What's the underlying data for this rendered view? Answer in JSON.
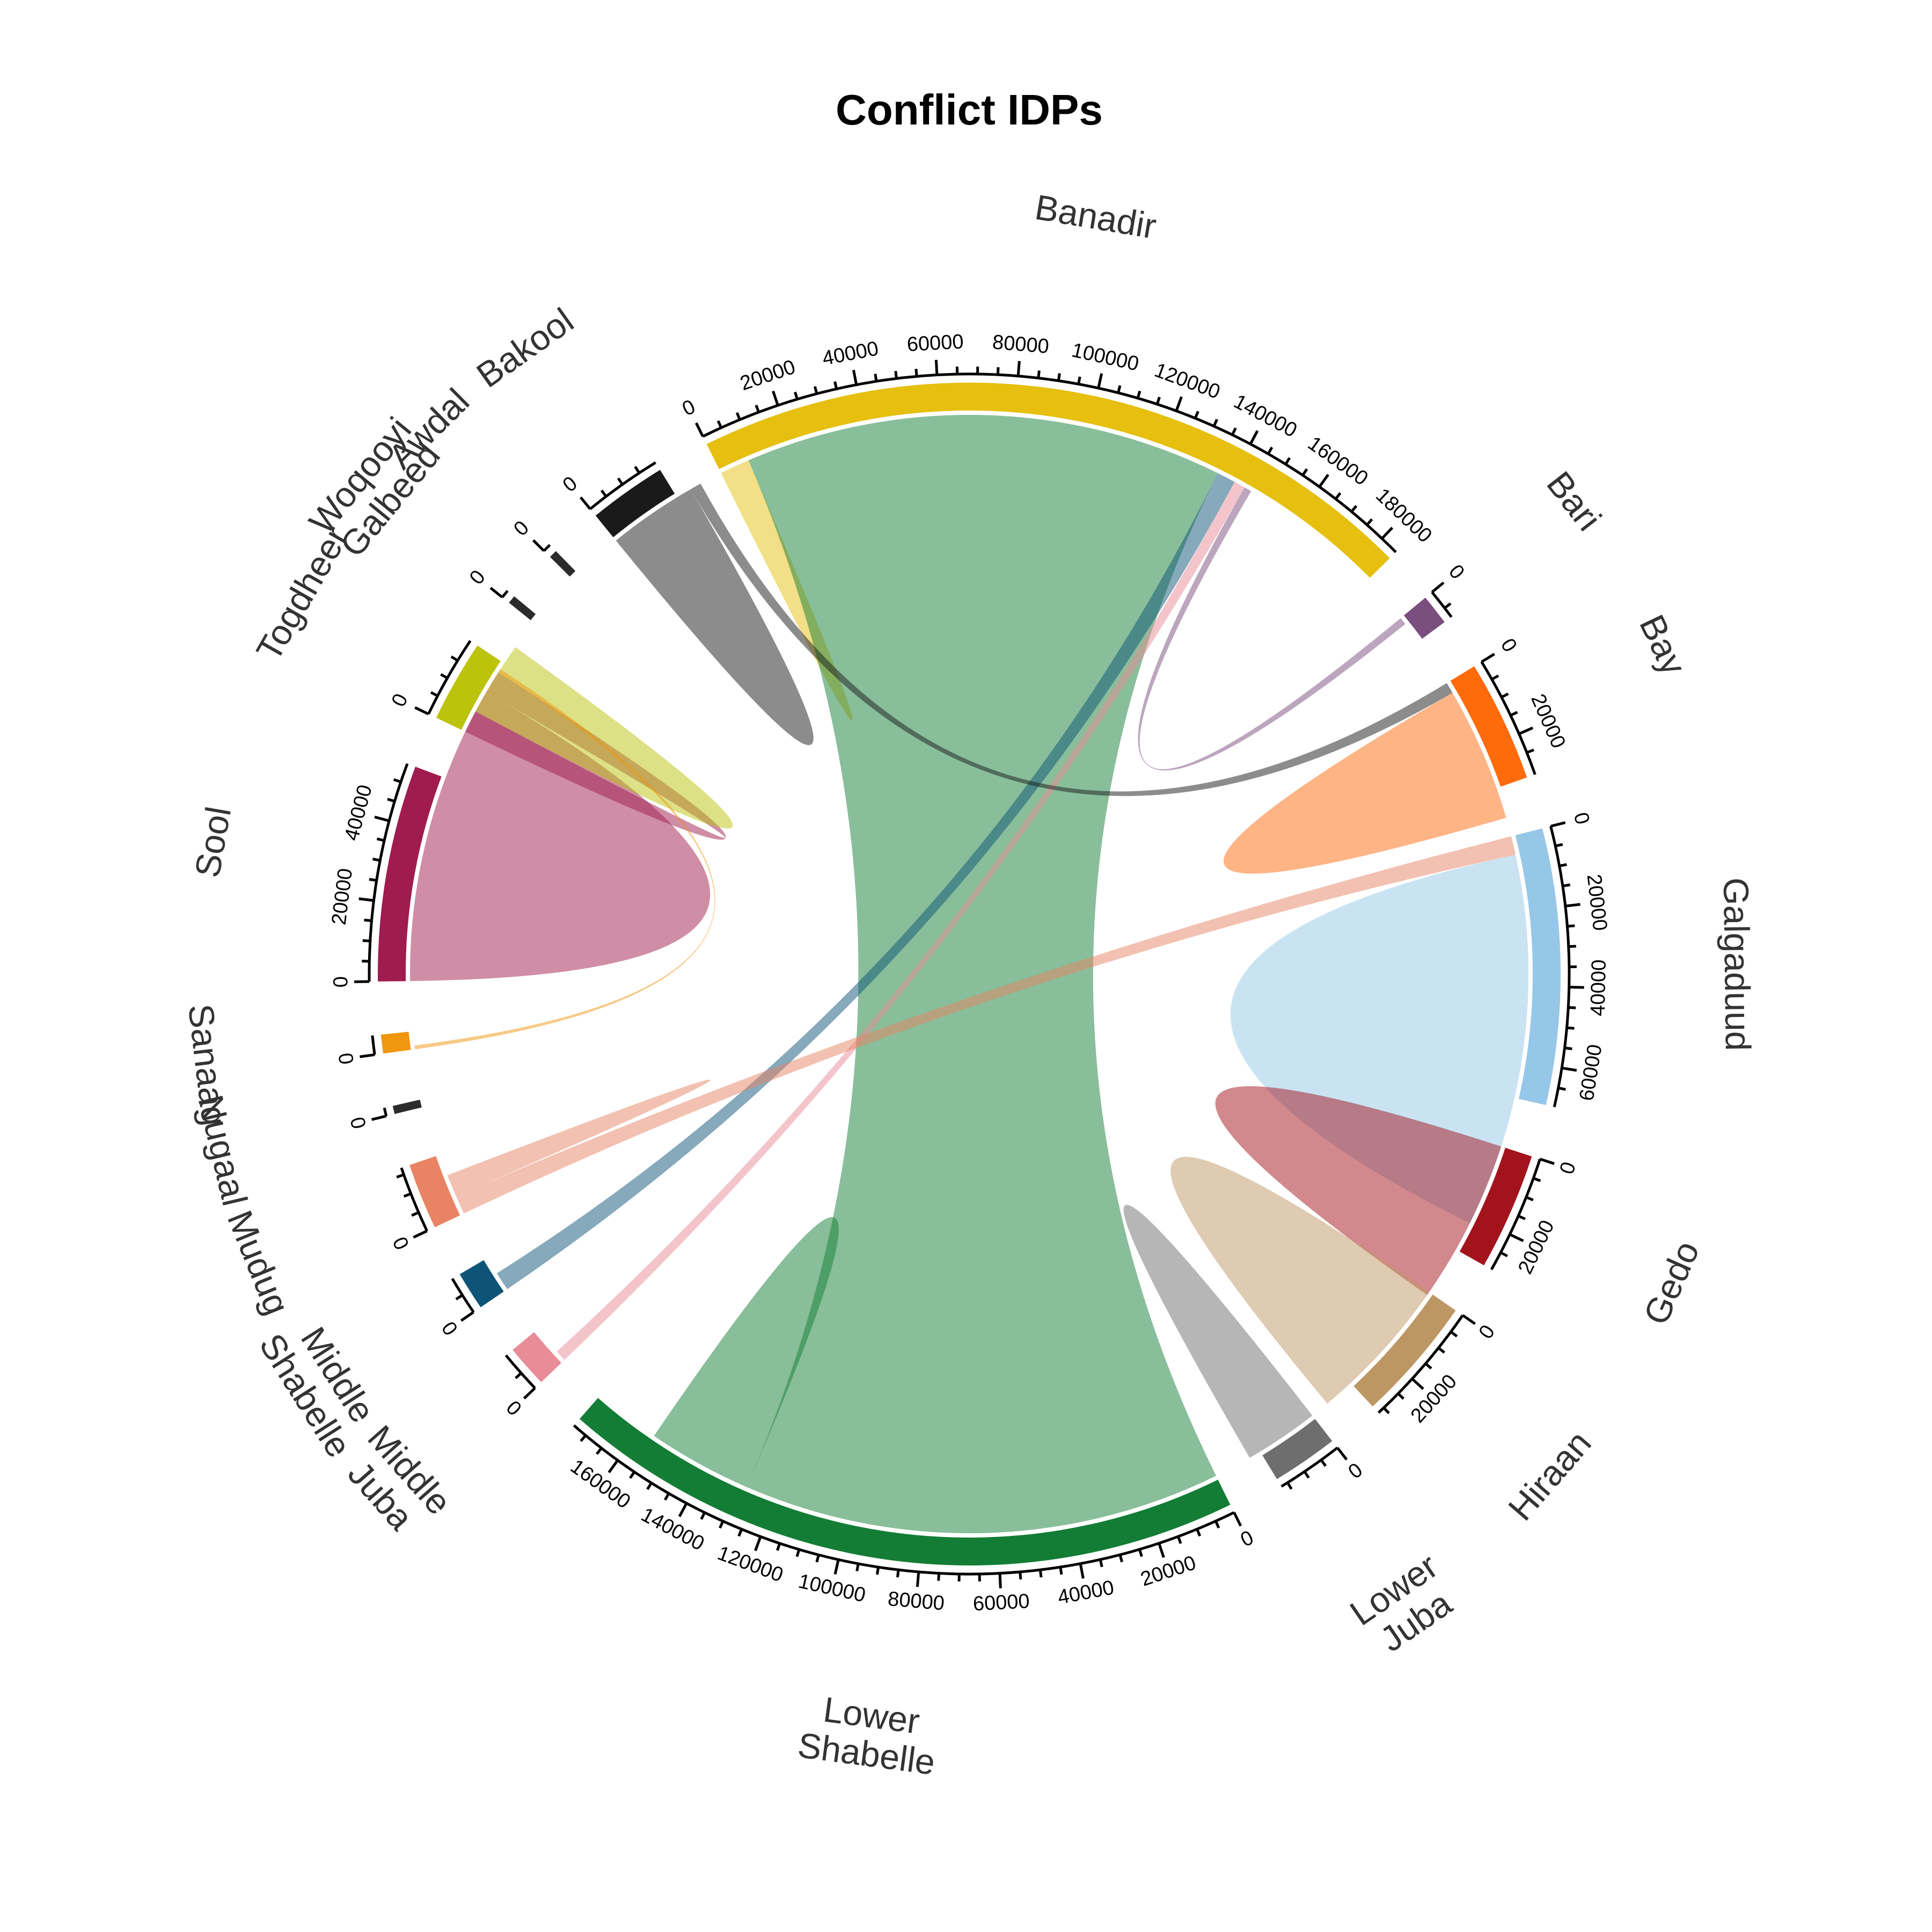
{
  "chart_data": {
    "type": "chord",
    "title": "Conflict IDPs",
    "sectors": [
      {
        "name": "Banadir",
        "label_lines": [
          "Banadir"
        ],
        "total": 183000,
        "color": "#E6BF0F",
        "tick_step": 20000
      },
      {
        "name": "Bari",
        "label_lines": [
          "Bari"
        ],
        "total": 6000,
        "color": "#7A4E7E",
        "tick_step": 20000
      },
      {
        "name": "Bay",
        "label_lines": [
          "Bay"
        ],
        "total": 29000,
        "color": "#FF6A0B",
        "tick_step": 20000
      },
      {
        "name": "Galgaduud",
        "label_lines": [
          "Galgaduud"
        ],
        "total": 68000,
        "color": "#96C7E8",
        "tick_step": 20000
      },
      {
        "name": "Gedo",
        "label_lines": [
          "Gedo"
        ],
        "total": 28000,
        "color": "#A3131C",
        "tick_step": 20000
      },
      {
        "name": "Hiraan",
        "label_lines": [
          "Hiraan"
        ],
        "total": 30000,
        "color": "#BD9763",
        "tick_step": 20000
      },
      {
        "name": "Lower Juba",
        "label_lines": [
          "Lower",
          "Juba"
        ],
        "total": 15000,
        "color": "#6E6E6E",
        "tick_step": 20000
      },
      {
        "name": "Lower Shabelle",
        "label_lines": [
          "Lower",
          "Shabelle"
        ],
        "total": 172000,
        "color": "#137D35",
        "tick_step": 20000
      },
      {
        "name": "Middle Juba",
        "label_lines": [
          "Middle",
          "Juba"
        ],
        "total": 9000,
        "color": "#E88C97",
        "tick_step": 20000
      },
      {
        "name": "Middle Shabelle",
        "label_lines": [
          "Middle",
          "Shabelle"
        ],
        "total": 8000,
        "color": "#0E5478",
        "tick_step": 20000
      },
      {
        "name": "Mudug",
        "label_lines": [
          "Mudug"
        ],
        "total": 15000,
        "color": "#E88463",
        "tick_step": 20000
      },
      {
        "name": "Nugaal",
        "label_lines": [
          "Nugaal"
        ],
        "total": 300,
        "color": "#2B2B2B",
        "tick_step": 20000
      },
      {
        "name": "Sanaag",
        "label_lines": [
          "Sanaag"
        ],
        "total": 3000,
        "color": "#F0960F",
        "tick_step": 20000
      },
      {
        "name": "Sool",
        "label_lines": [
          "Sool"
        ],
        "total": 53000,
        "color": "#A01C4E",
        "tick_step": 20000
      },
      {
        "name": "Togdheer",
        "label_lines": [
          "Togdheer"
        ],
        "total": 19000,
        "color": "#BCC30B",
        "tick_step": 20000
      },
      {
        "name": "Woqooyi Galbeed",
        "label_lines": [
          "Woqooyi",
          "Galbeed"
        ],
        "total": 300,
        "color": "#2B2B2B",
        "tick_step": 20000
      },
      {
        "name": "Awdal",
        "label_lines": [
          "Awdal"
        ],
        "total": 300,
        "color": "#2B2B2B",
        "tick_step": 20000
      },
      {
        "name": "Bakool",
        "label_lines": [
          "Bakool"
        ],
        "total": 18000,
        "color": "#1A1A1A",
        "tick_step": 20000
      }
    ],
    "flows": [
      {
        "from": "Banadir",
        "to": "Banadir",
        "value": 4000
      },
      {
        "from": "Lower Shabelle",
        "to": "Banadir",
        "value": 128000
      },
      {
        "from": "Lower Shabelle",
        "to": "Lower Shabelle",
        "value": 14000
      },
      {
        "from": "Middle Shabelle",
        "to": "Banadir",
        "value": 5000
      },
      {
        "from": "Middle Juba",
        "to": "Banadir",
        "value": 3000
      },
      {
        "from": "Mudug",
        "to": "Galgaduud",
        "value": 5000
      },
      {
        "from": "Mudug",
        "to": "Mudug",
        "value": 3000
      },
      {
        "from": "Sool",
        "to": "Sool",
        "value": 40000
      },
      {
        "from": "Sool",
        "to": "Togdheer",
        "value": 6000
      },
      {
        "from": "Togdheer",
        "to": "Togdheer",
        "value": 10000
      },
      {
        "from": "Bakool",
        "to": "Bakool",
        "value": 12000
      },
      {
        "from": "Bakool",
        "to": "Bay",
        "value": 3000
      },
      {
        "from": "Bay",
        "to": "Bay",
        "value": 18000
      },
      {
        "from": "Galgaduud",
        "to": "Galgaduud",
        "value": 50000
      },
      {
        "from": "Gedo",
        "to": "Gedo",
        "value": 22000
      },
      {
        "from": "Hiraan",
        "to": "Hiraan",
        "value": 20000
      },
      {
        "from": "Lower Juba",
        "to": "Lower Juba",
        "value": 10000
      },
      {
        "from": "Bari",
        "to": "Banadir",
        "value": 2000
      },
      {
        "from": "Sanaag",
        "to": "Sool",
        "value": 1000
      }
    ]
  }
}
